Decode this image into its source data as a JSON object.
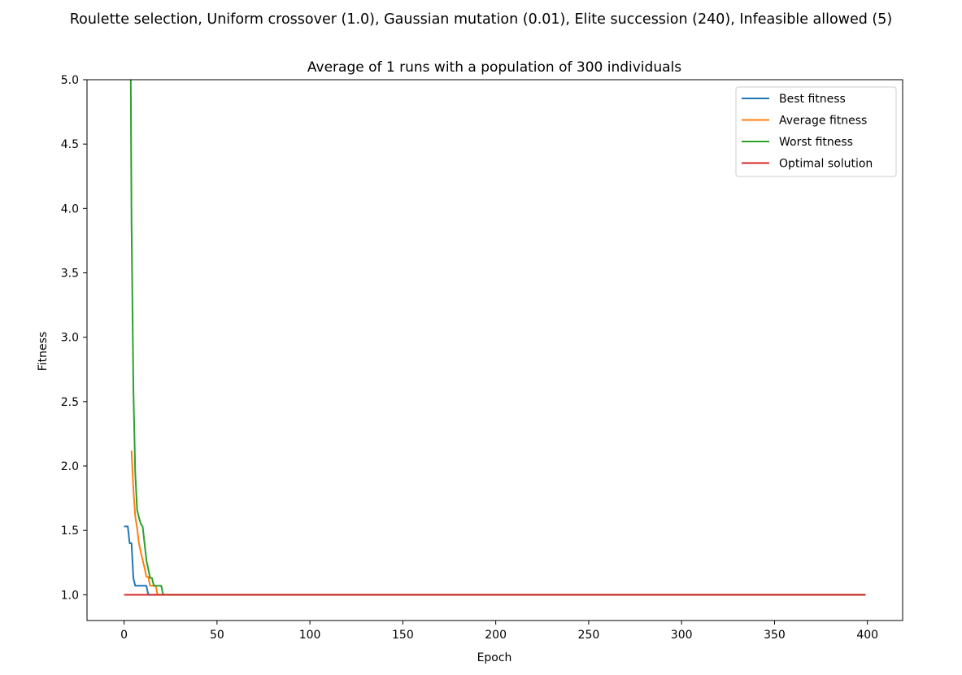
{
  "figure": {
    "suptitle": "Roulette selection, Uniform crossover (1.0), Gaussian mutation (0.01), Elite succession (240), Infeasible allowed (5)"
  },
  "chart_data": {
    "type": "line",
    "title": "Average of 1 runs with a population of 300 individuals",
    "xlabel": "Epoch",
    "ylabel": "Fitness",
    "xlim": [
      -19.95,
      418.95
    ],
    "ylim": [
      0.8,
      5.0
    ],
    "xticks": [
      0,
      50,
      100,
      150,
      200,
      250,
      300,
      350,
      400
    ],
    "yticks": [
      1.0,
      1.5,
      2.0,
      2.5,
      3.0,
      3.5,
      4.0,
      4.5,
      5.0
    ],
    "ytick_labels": [
      "1.0",
      "1.5",
      "2.0",
      "2.5",
      "3.0",
      "3.5",
      "4.0",
      "4.5",
      "5.0"
    ],
    "grid": false,
    "legend_position": "upper right",
    "series": [
      {
        "name": "Best fitness",
        "color": "#1f77b4",
        "x": [
          0,
          1,
          2,
          3,
          4,
          5,
          6,
          7,
          8,
          9,
          10,
          11,
          12,
          13,
          399
        ],
        "y": [
          1.53,
          1.53,
          1.53,
          1.4,
          1.4,
          1.13,
          1.07,
          1.07,
          1.07,
          1.07,
          1.07,
          1.07,
          1.07,
          1.0,
          1.0
        ]
      },
      {
        "name": "Average fitness",
        "color": "#ff7f0e",
        "x": [
          4,
          5,
          6,
          7,
          8,
          9,
          10,
          11,
          12,
          13,
          14,
          15,
          16,
          17,
          18,
          399
        ],
        "y": [
          2.12,
          1.82,
          1.61,
          1.52,
          1.4,
          1.33,
          1.27,
          1.21,
          1.14,
          1.14,
          1.07,
          1.07,
          1.07,
          1.07,
          1.0,
          1.0
        ]
      },
      {
        "name": "Worst fitness",
        "color": "#2ca02c",
        "x": [
          3.6,
          4,
          5,
          6,
          7,
          8,
          9,
          10,
          11,
          12,
          13,
          14,
          15,
          16,
          17,
          18,
          19,
          20,
          21,
          399
        ],
        "y": [
          5.0,
          3.9,
          2.6,
          1.95,
          1.66,
          1.6,
          1.55,
          1.53,
          1.4,
          1.27,
          1.2,
          1.13,
          1.13,
          1.07,
          1.07,
          1.07,
          1.07,
          1.07,
          1.0,
          1.0
        ]
      },
      {
        "name": "Optimal solution",
        "color": "#d62728",
        "x": [
          0,
          399
        ],
        "y": [
          1.0,
          1.0
        ]
      }
    ]
  }
}
